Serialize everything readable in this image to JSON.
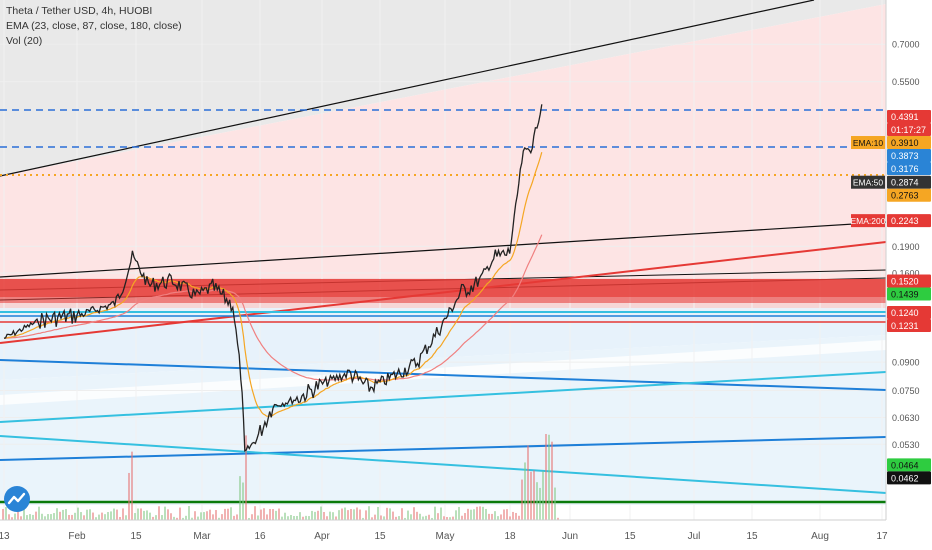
{
  "legend": {
    "title": "Theta / Tether USD, 4h, HUOBI",
    "ema": "EMA (23, close, 87, close, 180, close)",
    "vol": "Vol (20)"
  },
  "colors": {
    "price_line": "#222222",
    "ema_fast": "#f5a623",
    "ema_slow": "#f08080",
    "support_red": "#e53935",
    "trend_blue": "#1e7fd8",
    "trend_cyan": "#35c0e0",
    "green_line": "#0a7a0a"
  },
  "chart_data": {
    "type": "line",
    "title": "Theta / Tether USD, 4h, HUOBI",
    "x_tick_labels": [
      "13",
      "Feb",
      "15",
      "Mar",
      "16",
      "Apr",
      "15",
      "May",
      "18",
      "Jun",
      "15",
      "Jul",
      "15",
      "Aug",
      "17"
    ],
    "y_tick_labels": [
      "0.7000",
      "0.5500",
      "0.1900",
      "0.1600",
      "0.0900",
      "0.0750",
      "0.0630",
      "0.0530"
    ],
    "axis_scale": "log",
    "series": [
      {
        "x": [
          "Jan 13",
          "Jan 22",
          "Feb 1",
          "Feb 10",
          "Feb 14",
          "Feb 18",
          "Feb 24",
          "Mar 1",
          "Mar 5",
          "Mar 10",
          "Mar 12",
          "Mar 13",
          "Mar 16",
          "Mar 20",
          "Mar 26",
          "Apr 1",
          "Apr 8",
          "Apr 13",
          "Apr 18",
          "Apr 25",
          "May 1",
          "May 6",
          "May 10",
          "May 14",
          "May 18",
          "May 21",
          "May 24",
          "May 26"
        ],
        "y": [
          0.105,
          0.118,
          0.122,
          0.132,
          0.178,
          0.148,
          0.152,
          0.138,
          0.146,
          0.13,
          0.084,
          0.05,
          0.055,
          0.068,
          0.071,
          0.078,
          0.084,
          0.076,
          0.081,
          0.09,
          0.114,
          0.142,
          0.15,
          0.176,
          0.182,
          0.33,
          0.38,
          0.475
        ]
      }
    ],
    "price_labels": [
      {
        "label": "0.4391",
        "value": 0.4391,
        "color": "#e53935"
      },
      {
        "label": "01:17:27",
        "value": 0.415,
        "color": "#e53935"
      },
      {
        "label": "EMA:10",
        "tag": "0.3910",
        "value": 0.391,
        "color": "#f5a623"
      },
      {
        "label": "0.3873",
        "value": 0.3873,
        "color": "#2a84d6"
      },
      {
        "label": "0.3176",
        "value": 0.3176,
        "color": "#2a84d6"
      },
      {
        "label": "EMA:50",
        "tag": "0.2874",
        "value": 0.2874,
        "color": "#333333"
      },
      {
        "label": "0.2763",
        "value": 0.2763,
        "color": "#f5a623"
      },
      {
        "label": "EMA:200",
        "tag": "0.2243",
        "value": 0.2243,
        "color": "#e53935"
      },
      {
        "label": "0.1520",
        "value": 0.152,
        "color": "#e53935"
      },
      {
        "label": "0.1439",
        "value": 0.1439,
        "color": "#2ecc40"
      },
      {
        "label": "0.1240",
        "value": 0.124,
        "color": "#e53935"
      },
      {
        "label": "0.1231",
        "value": 0.1231,
        "color": "#e53935"
      },
      {
        "label": "0.0464",
        "value": 0.0464,
        "color": "#2ecc40"
      },
      {
        "label": "0.0462",
        "value": 0.0462,
        "color": "#111111"
      }
    ]
  }
}
